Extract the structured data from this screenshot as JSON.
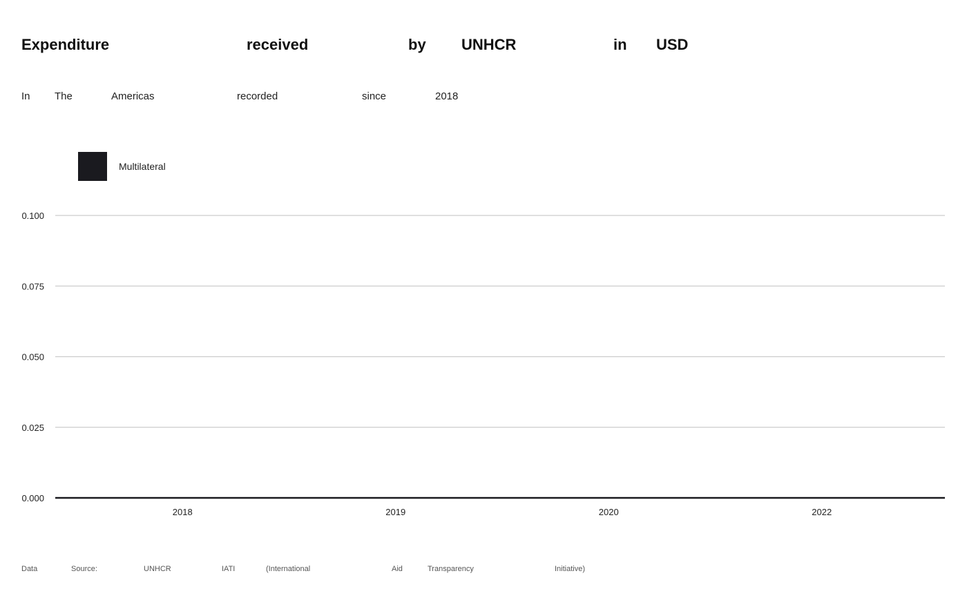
{
  "chart_data": {
    "type": "bar",
    "title": "Expenditure received by UNHCR in USD",
    "subtitle": "In The Americas recorded since 2018",
    "categories": [
      "2018",
      "2019",
      "2020",
      "2022"
    ],
    "series": [
      {
        "name": "Multilateral",
        "values": [
          0,
          0,
          0,
          0
        ],
        "color": "#1a1a1f"
      }
    ],
    "ylim": [
      0,
      0.1
    ],
    "yticks": [
      "0.000",
      "0.025",
      "0.050",
      "0.075",
      "0.100"
    ],
    "xlabel": "",
    "ylabel": "",
    "grid": true,
    "legend_position": "top-left",
    "source": "Data Source: UNHCR IATI (International Aid Transparency Initiative)"
  }
}
